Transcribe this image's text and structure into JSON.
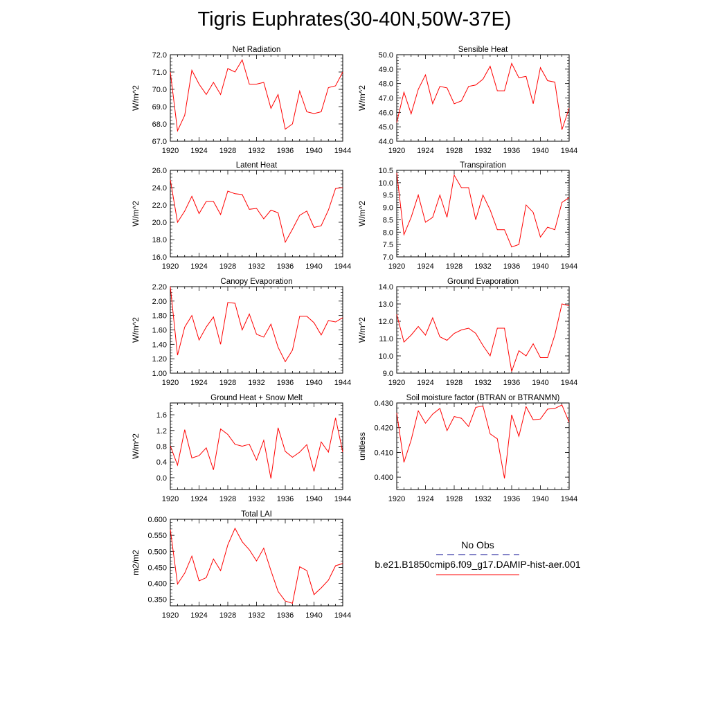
{
  "page": {
    "title": "Tigris Euphrates(30-40N,50W-37E)"
  },
  "legend": {
    "obs_label": "No Obs",
    "obs_color": "#3a3aa8",
    "model_label": "b.e21.B1850cmip6.f09_g17.DAMIP-hist-aer.001",
    "model_color": "#ff0000"
  },
  "chart_data": [
    {
      "type": "line",
      "title": "Net Radiation",
      "ylabel": "W/m^2",
      "xlim": [
        1920,
        1944
      ],
      "xticks": [
        "1920",
        "1924",
        "1928",
        "1932",
        "1936",
        "1940",
        "1944"
      ],
      "ylim": [
        67.0,
        72.0
      ],
      "yticks": [
        "67.0",
        "68.0",
        "69.0",
        "70.0",
        "71.0",
        "72.0"
      ],
      "x": [
        1920,
        1921,
        1922,
        1923,
        1924,
        1925,
        1926,
        1927,
        1928,
        1929,
        1930,
        1931,
        1932,
        1933,
        1934,
        1935,
        1936,
        1937,
        1938,
        1939,
        1940,
        1941,
        1942,
        1943,
        1944
      ],
      "series": [
        {
          "color": "#ff0000",
          "values": [
            71.0,
            67.6,
            68.5,
            71.1,
            70.3,
            69.7,
            70.4,
            69.7,
            71.2,
            71.0,
            71.7,
            70.3,
            70.3,
            70.4,
            68.9,
            69.7,
            67.7,
            68.0,
            69.9,
            68.7,
            68.6,
            68.7,
            70.1,
            70.2,
            71.0
          ]
        }
      ]
    },
    {
      "type": "line",
      "title": "Sensible Heat",
      "ylabel": "W/m^2",
      "xlim": [
        1920,
        1944
      ],
      "xticks": [
        "1920",
        "1924",
        "1928",
        "1932",
        "1936",
        "1940",
        "1944"
      ],
      "ylim": [
        44.0,
        50.0
      ],
      "yticks": [
        "44.0",
        "45.0",
        "46.0",
        "47.0",
        "48.0",
        "49.0",
        "50.0"
      ],
      "x": [
        1920,
        1921,
        1922,
        1923,
        1924,
        1925,
        1926,
        1927,
        1928,
        1929,
        1930,
        1931,
        1932,
        1933,
        1934,
        1935,
        1936,
        1937,
        1938,
        1939,
        1940,
        1941,
        1942,
        1943,
        1944
      ],
      "series": [
        {
          "color": "#ff0000",
          "values": [
            45.3,
            47.4,
            45.9,
            47.6,
            48.6,
            46.6,
            47.8,
            47.7,
            46.6,
            46.8,
            47.8,
            47.9,
            48.3,
            49.2,
            47.5,
            47.5,
            49.4,
            48.4,
            48.5,
            46.6,
            49.1,
            48.2,
            48.1,
            44.8,
            46.3
          ]
        }
      ]
    },
    {
      "type": "line",
      "title": "Latent Heat",
      "ylabel": "W/m^2",
      "xlim": [
        1920,
        1944
      ],
      "xticks": [
        "1920",
        "1924",
        "1928",
        "1932",
        "1936",
        "1940",
        "1944"
      ],
      "ylim": [
        16.0,
        26.0
      ],
      "yticks": [
        "16.0",
        "18.0",
        "20.0",
        "22.0",
        "24.0",
        "26.0"
      ],
      "x": [
        1920,
        1921,
        1922,
        1923,
        1924,
        1925,
        1926,
        1927,
        1928,
        1929,
        1930,
        1931,
        1932,
        1933,
        1934,
        1935,
        1936,
        1937,
        1938,
        1939,
        1940,
        1941,
        1942,
        1943,
        1944
      ],
      "series": [
        {
          "color": "#ff0000",
          "values": [
            24.9,
            20.0,
            21.3,
            23.0,
            21.0,
            22.4,
            22.4,
            20.9,
            23.6,
            23.3,
            23.2,
            21.5,
            21.6,
            20.4,
            21.4,
            21.1,
            17.7,
            19.2,
            20.8,
            21.3,
            19.4,
            19.6,
            21.4,
            23.9,
            24.0
          ]
        }
      ]
    },
    {
      "type": "line",
      "title": "Transpiration",
      "ylabel": "W/m^2",
      "xlim": [
        1920,
        1944
      ],
      "xticks": [
        "1920",
        "1924",
        "1928",
        "1932",
        "1936",
        "1940",
        "1944"
      ],
      "ylim": [
        7.0,
        10.5
      ],
      "yticks": [
        "7.0",
        "7.5",
        "8.0",
        "8.5",
        "9.0",
        "9.5",
        "10.0",
        "10.5"
      ],
      "x": [
        1920,
        1921,
        1922,
        1923,
        1924,
        1925,
        1926,
        1927,
        1928,
        1929,
        1930,
        1931,
        1932,
        1933,
        1934,
        1935,
        1936,
        1937,
        1938,
        1939,
        1940,
        1941,
        1942,
        1943,
        1944
      ],
      "series": [
        {
          "color": "#ff0000",
          "values": [
            10.4,
            7.9,
            8.6,
            9.5,
            8.4,
            8.6,
            9.5,
            8.6,
            10.3,
            9.8,
            9.8,
            8.5,
            9.5,
            8.9,
            8.1,
            8.1,
            7.4,
            7.5,
            9.1,
            8.8,
            7.8,
            8.2,
            8.1,
            9.2,
            9.4
          ]
        }
      ]
    },
    {
      "type": "line",
      "title": "Canopy Evaporation",
      "ylabel": "W/m^2",
      "xlim": [
        1920,
        1944
      ],
      "xticks": [
        "1920",
        "1924",
        "1928",
        "1932",
        "1936",
        "1940",
        "1944"
      ],
      "ylim": [
        1.0,
        2.2
      ],
      "yticks": [
        "1.00",
        "1.20",
        "1.40",
        "1.60",
        "1.80",
        "2.00",
        "2.20"
      ],
      "x": [
        1920,
        1921,
        1922,
        1923,
        1924,
        1925,
        1926,
        1927,
        1928,
        1929,
        1930,
        1931,
        1932,
        1933,
        1934,
        1935,
        1936,
        1937,
        1938,
        1939,
        1940,
        1941,
        1942,
        1943,
        1944
      ],
      "series": [
        {
          "color": "#ff0000",
          "values": [
            2.2,
            1.25,
            1.64,
            1.8,
            1.46,
            1.64,
            1.78,
            1.4,
            1.98,
            1.97,
            1.6,
            1.82,
            1.54,
            1.5,
            1.68,
            1.36,
            1.16,
            1.32,
            1.79,
            1.79,
            1.7,
            1.53,
            1.73,
            1.71,
            1.77
          ]
        }
      ]
    },
    {
      "type": "line",
      "title": "Ground Evaporation",
      "ylabel": "W/m^2",
      "xlim": [
        1920,
        1944
      ],
      "xticks": [
        "1920",
        "1924",
        "1928",
        "1932",
        "1936",
        "1940",
        "1944"
      ],
      "ylim": [
        9.0,
        14.0
      ],
      "yticks": [
        "9.0",
        "10.0",
        "11.0",
        "12.0",
        "13.0",
        "14.0"
      ],
      "x": [
        1920,
        1921,
        1922,
        1923,
        1924,
        1925,
        1926,
        1927,
        1928,
        1929,
        1930,
        1931,
        1932,
        1933,
        1934,
        1935,
        1936,
        1937,
        1938,
        1939,
        1940,
        1941,
        1942,
        1943,
        1944
      ],
      "series": [
        {
          "color": "#ff0000",
          "values": [
            12.4,
            10.8,
            11.2,
            11.7,
            11.2,
            12.2,
            11.1,
            10.9,
            11.3,
            11.5,
            11.6,
            11.3,
            10.6,
            10.0,
            11.6,
            11.6,
            9.1,
            10.3,
            10.0,
            10.7,
            9.9,
            9.9,
            11.2,
            13.0,
            12.9
          ]
        }
      ]
    },
    {
      "type": "line",
      "title": "Ground Heat + Snow Melt",
      "ylabel": "W/m^2",
      "xlim": [
        1920,
        1944
      ],
      "xticks": [
        "1920",
        "1924",
        "1928",
        "1932",
        "1936",
        "1940",
        "1944"
      ],
      "ylim": [
        -0.3,
        1.9
      ],
      "yticks": [
        "0.0",
        "0.4",
        "0.8",
        "1.2",
        "1.6"
      ],
      "ytick_values": [
        0.0,
        0.4,
        0.8,
        1.2,
        1.6
      ],
      "x": [
        1920,
        1921,
        1922,
        1923,
        1924,
        1925,
        1926,
        1927,
        1928,
        1929,
        1930,
        1931,
        1932,
        1933,
        1934,
        1935,
        1936,
        1937,
        1938,
        1939,
        1940,
        1941,
        1942,
        1943,
        1944
      ],
      "series": [
        {
          "color": "#ff0000",
          "values": [
            0.81,
            0.32,
            1.22,
            0.5,
            0.56,
            0.76,
            0.2,
            1.24,
            1.1,
            0.85,
            0.8,
            0.85,
            0.45,
            0.95,
            -0.02,
            1.27,
            0.67,
            0.52,
            0.65,
            0.84,
            0.16,
            0.91,
            0.65,
            1.52,
            0.65
          ]
        }
      ]
    },
    {
      "type": "line",
      "title": "Soil moisture factor (BTRAN or BTRANMN)",
      "ylabel": "unitless",
      "xlim": [
        1920,
        1944
      ],
      "xticks": [
        "1920",
        "1924",
        "1928",
        "1932",
        "1936",
        "1940",
        "1944"
      ],
      "ylim": [
        0.395,
        0.43
      ],
      "yticks": [
        "0.400",
        "0.410",
        "0.420",
        "0.430"
      ],
      "ytick_values": [
        0.4,
        0.41,
        0.42,
        0.43
      ],
      "x": [
        1920,
        1921,
        1922,
        1923,
        1924,
        1925,
        1926,
        1927,
        1928,
        1929,
        1930,
        1931,
        1932,
        1933,
        1934,
        1935,
        1936,
        1937,
        1938,
        1939,
        1940,
        1941,
        1942,
        1943,
        1944
      ],
      "series": [
        {
          "color": "#ff0000",
          "values": [
            0.426,
            0.406,
            0.415,
            0.4268,
            0.4218,
            0.4255,
            0.4278,
            0.4188,
            0.4245,
            0.4238,
            0.4205,
            0.4282,
            0.4288,
            0.4175,
            0.4155,
            0.3995,
            0.4252,
            0.4165,
            0.4285,
            0.4232,
            0.4235,
            0.4275,
            0.4278,
            0.4292,
            0.4222
          ]
        }
      ]
    },
    {
      "type": "line",
      "title": "Total LAI",
      "ylabel": "m2/m2",
      "xlim": [
        1920,
        1944
      ],
      "xticks": [
        "1920",
        "1924",
        "1928",
        "1932",
        "1936",
        "1940",
        "1944"
      ],
      "ylim": [
        0.33,
        0.6
      ],
      "yticks": [
        "0.350",
        "0.400",
        "0.450",
        "0.500",
        "0.550",
        "0.600"
      ],
      "ytick_values": [
        0.35,
        0.4,
        0.45,
        0.5,
        0.55,
        0.6
      ],
      "x": [
        1920,
        1921,
        1922,
        1923,
        1924,
        1925,
        1926,
        1927,
        1928,
        1929,
        1930,
        1931,
        1932,
        1933,
        1934,
        1935,
        1936,
        1937,
        1938,
        1939,
        1940,
        1941,
        1942,
        1943,
        1944
      ],
      "series": [
        {
          "color": "#ff0000",
          "values": [
            0.568,
            0.398,
            0.432,
            0.485,
            0.408,
            0.418,
            0.476,
            0.44,
            0.52,
            0.572,
            0.53,
            0.505,
            0.47,
            0.51,
            0.44,
            0.375,
            0.345,
            0.338,
            0.452,
            0.44,
            0.365,
            0.386,
            0.41,
            0.455,
            0.462
          ]
        }
      ]
    }
  ]
}
